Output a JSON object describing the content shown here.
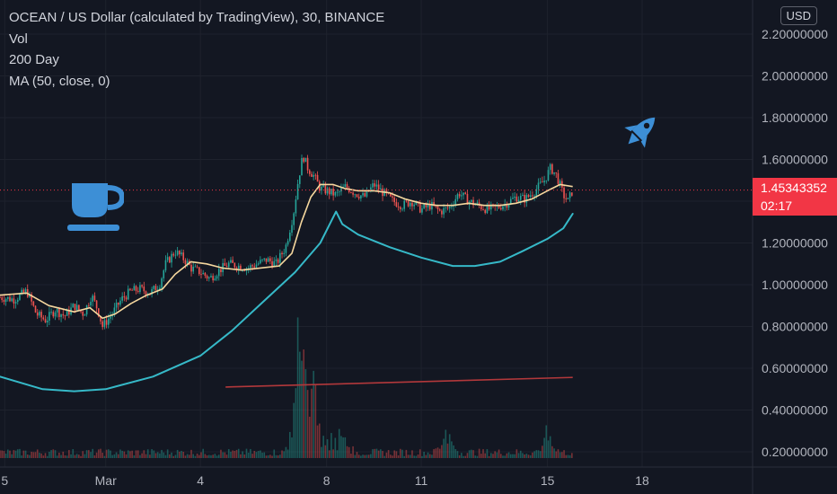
{
  "legend": {
    "symbol": "OCEAN / US Dollar (calculated by TradingView), 30, BINANCE",
    "vol": "Vol",
    "ma200": "200 Day",
    "ma50": "MA (50, close, 0)"
  },
  "currency_button": "USD",
  "last_price": {
    "value": "1.45343352",
    "countdown": "02:17",
    "color": "#f23645"
  },
  "icons": [
    "coffee-cup-icon",
    "rocket-icon"
  ],
  "colors": {
    "background": "#131722",
    "up": "#26a69a",
    "down": "#ef5350",
    "ma50": "#f5d79e",
    "annotation_curve": "#36b9c8",
    "ma200": "#b2383b",
    "grid": "#1e222d"
  },
  "chart_data": {
    "type": "candlestick",
    "title": "OCEAN / US Dollar (calculated by TradingView), 30, BINANCE",
    "interval": "30",
    "ylim": [
      0.1,
      2.3
    ],
    "y_ticks": [
      "2.20000000",
      "2.00000000",
      "1.80000000",
      "1.60000000",
      "1.40000000",
      "1.20000000",
      "1.00000000",
      "0.80000000",
      "0.60000000",
      "0.40000000",
      "0.20000000"
    ],
    "y_tick_values": [
      2.2,
      2.0,
      1.8,
      1.6,
      1.4,
      1.2,
      1.0,
      0.8,
      0.6,
      0.4,
      0.2
    ],
    "x_ticks": [
      "5",
      "Mar",
      "4",
      "8",
      "11",
      "15",
      "18"
    ],
    "x_tick_days": [
      -2.2,
      1,
      4,
      8,
      11,
      15,
      18
    ],
    "x_range_days": [
      -2.35,
      21.5
    ],
    "last_data_day": 15.8,
    "close_path": [
      [
        -2.35,
        0.94
      ],
      [
        -1.9,
        0.93
      ],
      [
        -1.5,
        0.97
      ],
      [
        -1.2,
        0.86
      ],
      [
        -0.9,
        0.83
      ],
      [
        -0.6,
        0.88
      ],
      [
        -0.3,
        0.85
      ],
      [
        0.0,
        0.9
      ],
      [
        0.3,
        0.86
      ],
      [
        0.55,
        0.95
      ],
      [
        0.75,
        0.88
      ],
      [
        0.9,
        0.8
      ],
      [
        1.2,
        0.86
      ],
      [
        1.5,
        0.93
      ],
      [
        1.8,
        0.97
      ],
      [
        2.1,
        0.98
      ],
      [
        2.4,
        0.96
      ],
      [
        2.7,
        1.0
      ],
      [
        2.9,
        1.1
      ],
      [
        3.2,
        1.16
      ],
      [
        3.5,
        1.12
      ],
      [
        3.7,
        1.08
      ],
      [
        4.0,
        1.06
      ],
      [
        4.3,
        1.03
      ],
      [
        4.6,
        1.07
      ],
      [
        4.9,
        1.1
      ],
      [
        5.2,
        1.09
      ],
      [
        5.5,
        1.08
      ],
      [
        5.8,
        1.1
      ],
      [
        6.1,
        1.12
      ],
      [
        6.4,
        1.1
      ],
      [
        6.7,
        1.18
      ],
      [
        6.95,
        1.34
      ],
      [
        7.1,
        1.5
      ],
      [
        7.25,
        1.62
      ],
      [
        7.4,
        1.56
      ],
      [
        7.6,
        1.52
      ],
      [
        7.8,
        1.46
      ],
      [
        8.0,
        1.45
      ],
      [
        8.3,
        1.43
      ],
      [
        8.6,
        1.47
      ],
      [
        8.9,
        1.44
      ],
      [
        9.2,
        1.42
      ],
      [
        9.5,
        1.48
      ],
      [
        9.8,
        1.44
      ],
      [
        10.1,
        1.4
      ],
      [
        10.4,
        1.38
      ],
      [
        10.7,
        1.4
      ],
      [
        11.0,
        1.36
      ],
      [
        11.3,
        1.38
      ],
      [
        11.6,
        1.35
      ],
      [
        11.9,
        1.37
      ],
      [
        12.2,
        1.44
      ],
      [
        12.5,
        1.4
      ],
      [
        12.8,
        1.38
      ],
      [
        13.1,
        1.36
      ],
      [
        13.4,
        1.37
      ],
      [
        13.7,
        1.39
      ],
      [
        14.0,
        1.42
      ],
      [
        14.3,
        1.41
      ],
      [
        14.6,
        1.45
      ],
      [
        14.9,
        1.5
      ],
      [
        15.1,
        1.56
      ],
      [
        15.3,
        1.52
      ],
      [
        15.5,
        1.43
      ],
      [
        15.65,
        1.4
      ],
      [
        15.8,
        1.453
      ]
    ],
    "series": [
      {
        "name": "Vol",
        "type": "histogram",
        "baseline_value": 0.17,
        "spike_days": [
          7.1,
          7.3,
          7.6,
          8.5,
          11.8,
          15.0
        ],
        "spike_heights": [
          0.48,
          0.38,
          0.28,
          0.14,
          0.16,
          0.14
        ],
        "typical_height": 0.03
      },
      {
        "name": "MA (50, close, 0)",
        "type": "line",
        "color": "#f5d79e",
        "points": [
          [
            -2.35,
            0.95
          ],
          [
            -1.5,
            0.96
          ],
          [
            -0.8,
            0.9
          ],
          [
            0.0,
            0.87
          ],
          [
            0.5,
            0.89
          ],
          [
            0.9,
            0.84
          ],
          [
            1.3,
            0.86
          ],
          [
            1.8,
            0.91
          ],
          [
            2.3,
            0.95
          ],
          [
            2.8,
            0.98
          ],
          [
            3.2,
            1.05
          ],
          [
            3.7,
            1.11
          ],
          [
            4.2,
            1.1
          ],
          [
            4.7,
            1.08
          ],
          [
            5.3,
            1.07
          ],
          [
            5.9,
            1.08
          ],
          [
            6.5,
            1.09
          ],
          [
            6.9,
            1.15
          ],
          [
            7.2,
            1.3
          ],
          [
            7.5,
            1.42
          ],
          [
            7.8,
            1.48
          ],
          [
            8.2,
            1.48
          ],
          [
            8.6,
            1.46
          ],
          [
            9.0,
            1.45
          ],
          [
            9.5,
            1.45
          ],
          [
            10.0,
            1.44
          ],
          [
            10.5,
            1.41
          ],
          [
            11.0,
            1.39
          ],
          [
            11.5,
            1.38
          ],
          [
            12.0,
            1.38
          ],
          [
            12.5,
            1.39
          ],
          [
            13.0,
            1.38
          ],
          [
            13.5,
            1.38
          ],
          [
            14.0,
            1.39
          ],
          [
            14.5,
            1.41
          ],
          [
            15.0,
            1.45
          ],
          [
            15.4,
            1.48
          ],
          [
            15.8,
            1.47
          ]
        ]
      },
      {
        "name": "200 Day",
        "type": "line",
        "color": "#b2383b",
        "points": [
          [
            4.8,
            0.51
          ],
          [
            15.8,
            0.556
          ]
        ]
      }
    ],
    "annotations": [
      {
        "type": "curve",
        "color": "#36b9c8",
        "points": [
          [
            -2.35,
            0.56
          ],
          [
            -1.0,
            0.5
          ],
          [
            0.0,
            0.49
          ],
          [
            1.0,
            0.5
          ],
          [
            2.5,
            0.56
          ],
          [
            4.0,
            0.66
          ],
          [
            5.0,
            0.78
          ],
          [
            6.0,
            0.92
          ],
          [
            7.0,
            1.06
          ],
          [
            7.8,
            1.2
          ],
          [
            8.3,
            1.35
          ],
          [
            8.5,
            1.29
          ],
          [
            9.0,
            1.24
          ],
          [
            10.0,
            1.18
          ],
          [
            11.0,
            1.13
          ],
          [
            12.0,
            1.09
          ],
          [
            12.7,
            1.09
          ],
          [
            13.5,
            1.11
          ],
          [
            14.2,
            1.16
          ],
          [
            15.0,
            1.22
          ],
          [
            15.5,
            1.27
          ],
          [
            15.8,
            1.34
          ]
        ]
      }
    ],
    "last_value": 1.45343352,
    "last_value_line_color": "#f23645",
    "grid": true,
    "legend_placement": "top-left"
  }
}
